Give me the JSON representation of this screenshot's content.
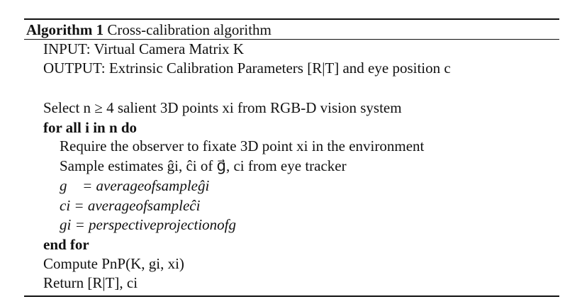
{
  "algorithm": {
    "label": "Algorithm 1",
    "title": "Cross-calibration algorithm"
  },
  "lines": {
    "input": "INPUT: Virtual Camera Matrix K",
    "output": "OUTPUT: Extrinsic Calibration Parameters [R|T] and eye position c",
    "select": "Select n ≥ 4 salient 3D points xi from RGB-D vision system",
    "for_all": "for all i in n do",
    "require": "Require the observer to fixate 3D point xi in the environment",
    "sample": "Sample estimates ĝi, ĉi of g⃗, ci from eye tracker",
    "g_avg": "g⃗ = averageofsampleĝi",
    "c_avg": "ci = averageofsampleĉi",
    "g_proj": "gi = perspectiveprojectionofg⃗",
    "end_for": "end for",
    "compute": "Compute PnP(K, gi, xi)",
    "return": "Return [R|T], ci"
  }
}
